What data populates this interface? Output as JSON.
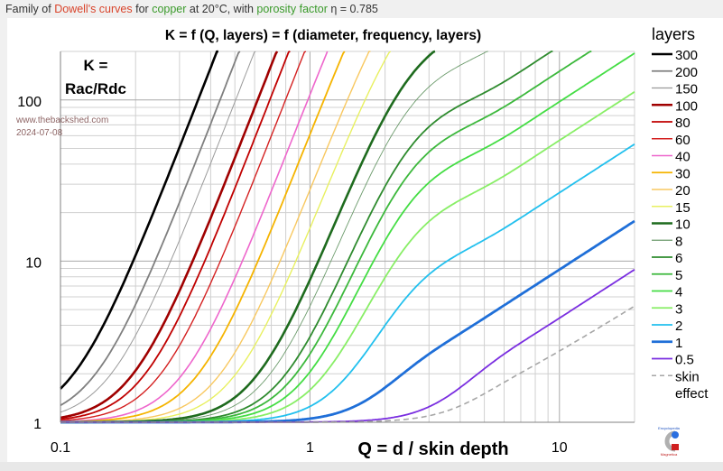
{
  "caption": {
    "part1": "Family of ",
    "dowell": "Dowell's curves",
    "part2": " for ",
    "copper": "copper",
    "part3": " at 20°C, with ",
    "porosity": "porosity factor",
    "part4": " η = 0.785"
  },
  "watermark": {
    "site": "www.thebackshed.com",
    "date": "2024-07-08"
  },
  "logo": {
    "top": "Encyclopedia",
    "bottom": "Magnetica"
  },
  "chart_data": {
    "type": "line",
    "title": "K = f (Q, layers) = f (diameter, frequency, layers)",
    "ylabel_line1": "K =",
    "ylabel_line2": "Rac/Rdc",
    "xlabel": "Q = d / skin depth",
    "xscale": "log",
    "yscale": "log",
    "xlim": [
      0.1,
      20
    ],
    "ylim": [
      1,
      200
    ],
    "xticks": [
      {
        "v": 0.1,
        "label": "0.1"
      },
      {
        "v": 1,
        "label": "1"
      },
      {
        "v": 10,
        "label": "10"
      }
    ],
    "yticks": [
      {
        "v": 1,
        "label": "1"
      },
      {
        "v": 10,
        "label": "10"
      },
      {
        "v": 100,
        "label": "100"
      }
    ],
    "grid": true,
    "porosity_eta": 0.785,
    "model": "Dowell: K = Δ[(sinh2Δ+sin2Δ)/(cosh2Δ−cos2Δ) + 2(m²−1)/3·(sinhΔ−sinΔ)/(coshΔ+cosΔ)], Δ = √η·Q",
    "legend_title": "layers",
    "legend_position": "right",
    "series": [
      {
        "name": "300",
        "layers": 300,
        "color": "#000000",
        "width": 2.6
      },
      {
        "name": "200",
        "layers": 200,
        "color": "#7f7f7f",
        "width": 1.8
      },
      {
        "name": "150",
        "layers": 150,
        "color": "#9a9a9a",
        "width": 1
      },
      {
        "name": "100",
        "layers": 100,
        "color": "#a00000",
        "width": 2.6
      },
      {
        "name": "80",
        "layers": 80,
        "color": "#c00000",
        "width": 1.8
      },
      {
        "name": "60",
        "layers": 60,
        "color": "#d42020",
        "width": 1.4
      },
      {
        "name": "40",
        "layers": 40,
        "color": "#ee66cc",
        "width": 1.6
      },
      {
        "name": "30",
        "layers": 30,
        "color": "#f5b400",
        "width": 1.8
      },
      {
        "name": "20",
        "layers": 20,
        "color": "#f8c860",
        "width": 1.4
      },
      {
        "name": "15",
        "layers": 15,
        "color": "#e8f060",
        "width": 1.4
      },
      {
        "name": "10",
        "layers": 10,
        "color": "#1e6b1e",
        "width": 2.6
      },
      {
        "name": "8",
        "layers": 8,
        "color": "#6b9a6b",
        "width": 0.9
      },
      {
        "name": "6",
        "layers": 6,
        "color": "#2e8b2e",
        "width": 1.8
      },
      {
        "name": "5",
        "layers": 5,
        "color": "#3cb83c",
        "width": 1.8
      },
      {
        "name": "4",
        "layers": 4,
        "color": "#44dd44",
        "width": 1.8
      },
      {
        "name": "3",
        "layers": 3,
        "color": "#88ee66",
        "width": 1.8
      },
      {
        "name": "2",
        "layers": 2,
        "color": "#22c0ee",
        "width": 1.8
      },
      {
        "name": "1",
        "layers": 1,
        "color": "#1f6fd8",
        "width": 2.8
      },
      {
        "name": "0.5",
        "layers": 0.5,
        "color": "#7a2ee0",
        "width": 1.8
      },
      {
        "name": "skin effect",
        "layers": null,
        "model": "round wire skin effect",
        "color": "#a6a6a6",
        "width": 1.6,
        "dashed": true
      }
    ]
  }
}
